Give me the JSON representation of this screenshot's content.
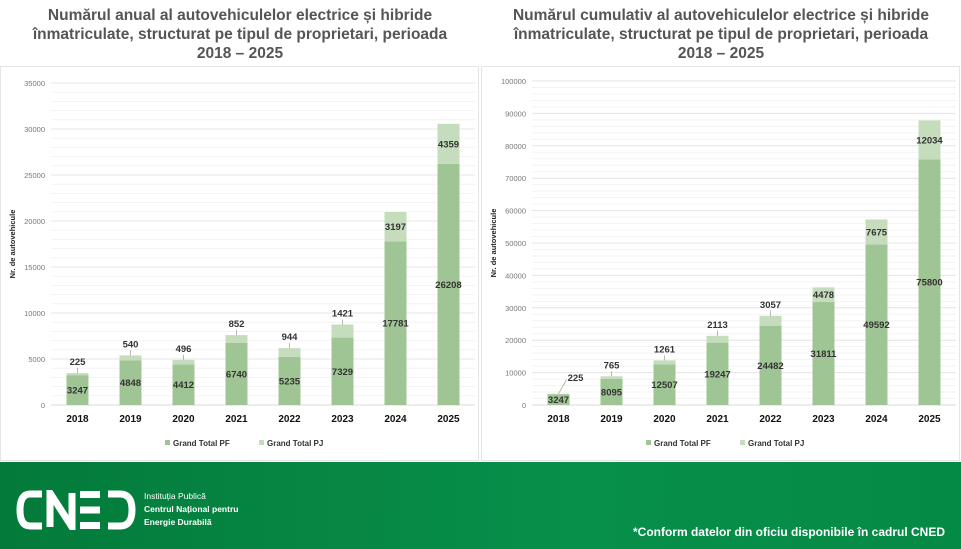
{
  "chart_data": [
    {
      "type": "bar",
      "stacked": true,
      "title": "Numărul anual al autovehiculelor electrice și hibride înmatriculate, structurat pe tipul de proprietari, perioada 2018 – 2025",
      "xlabel": "",
      "ylabel": "Nr. de autovehicule",
      "ylim": [
        0,
        35000
      ],
      "ytick_step": 5000,
      "yticks": [
        "0",
        "5000",
        "10000",
        "15000",
        "20000",
        "25000",
        "30000",
        "35000"
      ],
      "grid": true,
      "legend_position": "bottom",
      "categories": [
        "2018",
        "2019",
        "2020",
        "2021",
        "2022",
        "2023",
        "2024",
        "2025"
      ],
      "series": [
        {
          "name": "Grand Total PF",
          "color": "#a0c595",
          "values": [
            3247,
            4848,
            4412,
            6740,
            5235,
            7329,
            17781,
            26208
          ]
        },
        {
          "name": "Grand Total PJ",
          "color": "#c5dcbd",
          "values": [
            225,
            540,
            496,
            852,
            944,
            1421,
            3197,
            4359
          ]
        }
      ]
    },
    {
      "type": "bar",
      "stacked": true,
      "title": "Numărul cumulativ al autovehiculelor electrice și hibride înmatriculate, structurat pe tipul de proprietari, perioada 2018 – 2025",
      "xlabel": "",
      "ylabel": "Nr. de autovehicule",
      "ylim": [
        0,
        100000
      ],
      "ytick_step": 10000,
      "yticks": [
        "0",
        "10000",
        "20000",
        "30000",
        "40000",
        "50000",
        "60000",
        "70000",
        "80000",
        "90000",
        "100000"
      ],
      "grid": true,
      "legend_position": "bottom",
      "categories": [
        "2018",
        "2019",
        "2020",
        "2021",
        "2022",
        "2023",
        "2024",
        "2025"
      ],
      "series": [
        {
          "name": "Grand Total PF",
          "color": "#a0c595",
          "values": [
            3247,
            8095,
            12507,
            19247,
            24482,
            31811,
            49592,
            75800
          ]
        },
        {
          "name": "Grand Total PJ",
          "color": "#c5dcbd",
          "values": [
            225,
            765,
            1261,
            2113,
            3057,
            4478,
            7675,
            12034
          ]
        }
      ]
    }
  ],
  "titles": {
    "left": [
      "Numărul anual al autovehiculelor electrice și hibride",
      "înmatriculate, structurat pe tipul de proprietari, perioada",
      "2018 – 2025"
    ],
    "right": [
      "Numărul cumulativ al autovehiculelor electrice și hibride",
      "înmatriculate, structurat pe tipul de proprietari, perioada",
      "2018 – 2025"
    ]
  },
  "footer": {
    "logo_text": "CNED",
    "institution": [
      "Instituția Publică",
      "Centrul Național pentru",
      "Energie Durabilă"
    ],
    "note": "*Conform datelor din oficiu disponibile în cadrul CNED",
    "bg_color": "#058a45"
  }
}
